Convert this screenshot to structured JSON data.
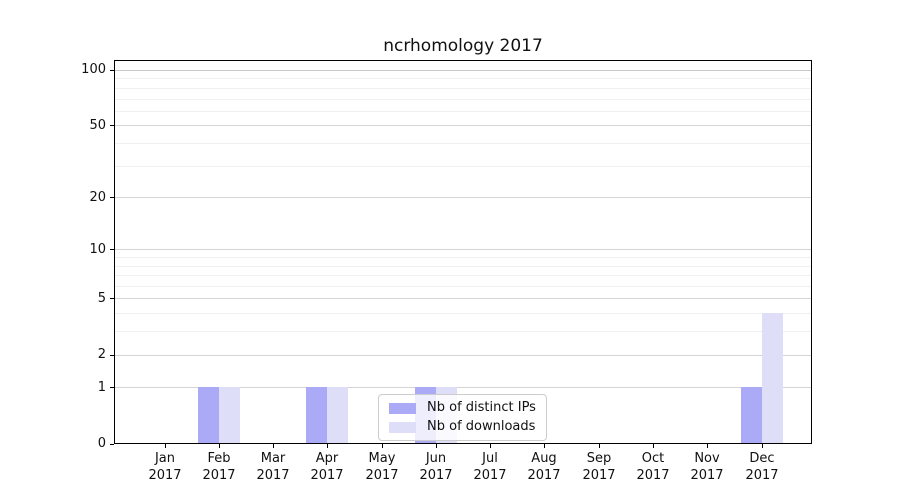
{
  "title": "ncrhomology 2017",
  "axis": {
    "months": [
      "Jan",
      "Feb",
      "Mar",
      "Apr",
      "May",
      "Jun",
      "Jul",
      "Aug",
      "Sep",
      "Oct",
      "Nov",
      "Dec"
    ],
    "year": "2017",
    "y_tick_labels": [
      "0",
      "1",
      "2",
      "5",
      "10",
      "20",
      "50",
      "100"
    ]
  },
  "legend": {
    "items": [
      {
        "label": "Nb of distinct IPs",
        "color": "#aaaaf6"
      },
      {
        "label": "Nb of downloads",
        "color": "#dedef8"
      }
    ]
  },
  "colors": {
    "distinct_ips": "#aaaaf6",
    "downloads": "#dedef8",
    "grid_major": "#d4d4d4",
    "grid_top": "#c8c8c8",
    "grid_minor": "#f0f0f0",
    "spine": "#000000",
    "text": "#111111"
  },
  "chart_data": {
    "type": "bar",
    "title": "ncrhomology 2017",
    "categories": [
      "Jan 2017",
      "Feb 2017",
      "Mar 2017",
      "Apr 2017",
      "May 2017",
      "Jun 2017",
      "Jul 2017",
      "Aug 2017",
      "Sep 2017",
      "Oct 2017",
      "Nov 2017",
      "Dec 2017"
    ],
    "series": [
      {
        "name": "Nb of distinct IPs",
        "values": [
          0,
          1,
          0,
          1,
          0,
          1,
          0,
          0,
          0,
          0,
          0,
          1
        ]
      },
      {
        "name": "Nb of downloads",
        "values": [
          0,
          1,
          0,
          1,
          0,
          1,
          0,
          0,
          0,
          0,
          0,
          4
        ]
      }
    ],
    "xlabel": "",
    "ylabel": "",
    "y_ticks": [
      0,
      1,
      2,
      5,
      10,
      20,
      50,
      100
    ],
    "y_minor_gridlines": [
      3,
      4,
      6,
      7,
      8,
      9,
      30,
      40,
      60,
      70,
      80,
      90
    ],
    "y_scale": "log10(value+1)",
    "ylim": [
      0,
      112
    ],
    "grid": true,
    "legend_position": "lower center"
  }
}
